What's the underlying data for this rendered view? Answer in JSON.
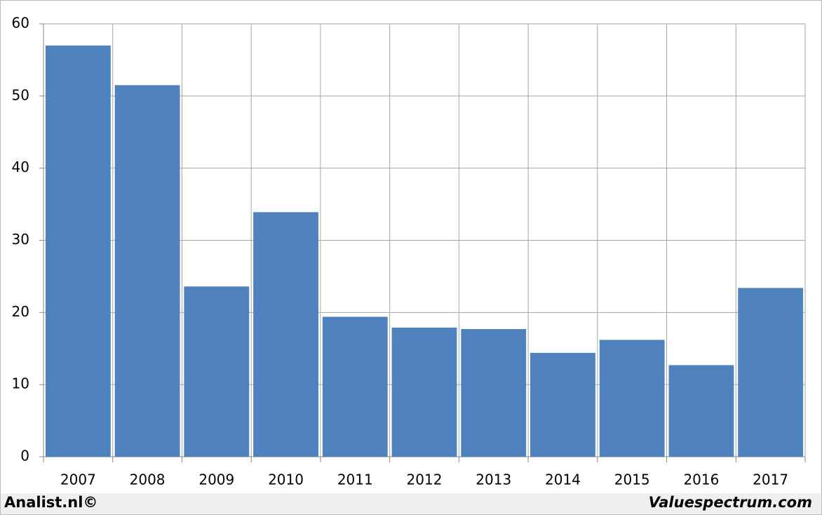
{
  "chart_data": {
    "type": "bar",
    "categories": [
      "2007",
      "2008",
      "2009",
      "2010",
      "2011",
      "2012",
      "2013",
      "2014",
      "2015",
      "2016",
      "2017"
    ],
    "values": [
      57.0,
      51.5,
      23.6,
      33.9,
      19.4,
      17.9,
      17.7,
      14.4,
      16.2,
      12.7,
      23.4
    ],
    "color": "#4f81bd",
    "ylim": [
      0,
      60
    ],
    "yticks": [
      0,
      10,
      20,
      30,
      40,
      50,
      60
    ],
    "grid": true,
    "source": "Analist.nl©",
    "credit": "Valuespectrum.com"
  }
}
